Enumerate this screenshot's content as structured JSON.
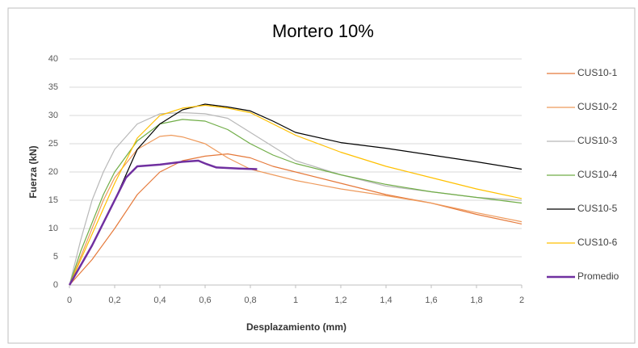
{
  "chart_data": {
    "type": "line",
    "title": "Mortero 10%",
    "xlabel": "Desplazamiento (mm)",
    "ylabel": "Fuerza (kN)",
    "xlim": [
      0,
      2
    ],
    "ylim": [
      0,
      40
    ],
    "xticks": [
      0,
      {
        "value": 0.2,
        "label": "0,2"
      },
      {
        "value": 0.4,
        "label": "0,4"
      },
      {
        "value": 0.6,
        "label": "0,6"
      },
      {
        "value": 0.8,
        "label": "0,8"
      },
      1,
      {
        "value": 1.2,
        "label": "1,2"
      },
      {
        "value": 1.4,
        "label": "1,4"
      },
      {
        "value": 1.6,
        "label": "1,6"
      },
      {
        "value": 1.8,
        "label": "1,8"
      },
      2
    ],
    "yticks": [
      0,
      5,
      10,
      15,
      20,
      25,
      30,
      35,
      40
    ],
    "grid": true,
    "legend": "right",
    "series": [
      {
        "name": "CUS10-1",
        "color": "#e5793a",
        "width": 1.2,
        "x": [
          0,
          0.1,
          0.2,
          0.3,
          0.4,
          0.5,
          0.6,
          0.7,
          0.8,
          0.9,
          1.0,
          1.2,
          1.4,
          1.6,
          1.8,
          2.0
        ],
        "values": [
          0,
          4.5,
          10,
          16,
          20,
          22,
          22.8,
          23.2,
          22.5,
          21,
          20,
          18,
          16,
          14.5,
          12.5,
          10.8
        ]
      },
      {
        "name": "CUS10-2",
        "color": "#ee9a5c",
        "width": 1.2,
        "x": [
          0,
          0.05,
          0.1,
          0.15,
          0.2,
          0.3,
          0.4,
          0.45,
          0.5,
          0.6,
          0.7,
          0.8,
          0.9,
          1.0,
          1.2,
          1.4,
          1.6,
          1.8,
          2.0
        ],
        "values": [
          0,
          5,
          10,
          15,
          19,
          24,
          26.3,
          26.5,
          26.2,
          25,
          22.5,
          20.5,
          19.5,
          18.5,
          17,
          15.8,
          14.5,
          12.8,
          11.2
        ]
      },
      {
        "name": "CUS10-3",
        "color": "#b8b8b8",
        "width": 1.2,
        "x": [
          0,
          0.05,
          0.1,
          0.15,
          0.2,
          0.3,
          0.4,
          0.5,
          0.6,
          0.7,
          0.8,
          0.9,
          1.0,
          1.2,
          1.4,
          1.6,
          1.8,
          2.0
        ],
        "values": [
          0,
          8,
          15,
          20,
          24,
          28.5,
          30.3,
          30.5,
          30.3,
          29.5,
          27,
          24.5,
          22,
          19.5,
          17.5,
          16.5,
          15.5,
          15
        ]
      },
      {
        "name": "CUS10-4",
        "color": "#70ad47",
        "width": 1.2,
        "x": [
          0,
          0.05,
          0.1,
          0.15,
          0.2,
          0.3,
          0.4,
          0.5,
          0.6,
          0.7,
          0.8,
          0.9,
          1.0,
          1.2,
          1.4,
          1.6,
          1.8,
          2.0
        ],
        "values": [
          0,
          6,
          11,
          16,
          20,
          25.5,
          28.5,
          29.3,
          29,
          27.5,
          25,
          23,
          21.5,
          19.5,
          17.8,
          16.5,
          15.5,
          14.5
        ]
      },
      {
        "name": "CUS10-5",
        "color": "#000000",
        "width": 1.2,
        "x": [
          0,
          0.1,
          0.2,
          0.3,
          0.4,
          0.5,
          0.6,
          0.7,
          0.8,
          0.9,
          1.0,
          1.2,
          1.4,
          1.6,
          1.8,
          2.0
        ],
        "values": [
          0,
          7,
          15,
          24,
          28.5,
          31,
          32,
          31.5,
          30.8,
          29,
          27,
          25.2,
          24.2,
          23,
          21.8,
          20.5
        ]
      },
      {
        "name": "CUS10-6",
        "color": "#ffc000",
        "width": 1.2,
        "x": [
          0,
          0.1,
          0.2,
          0.3,
          0.4,
          0.5,
          0.6,
          0.7,
          0.8,
          0.9,
          1.0,
          1.2,
          1.4,
          1.6,
          1.8,
          2.0
        ],
        "values": [
          0,
          9,
          18,
          26,
          30,
          31.3,
          31.8,
          31.3,
          30.5,
          28.5,
          26.5,
          23.5,
          21,
          19,
          17,
          15.3
        ]
      },
      {
        "name": "Promedio",
        "color": "#7030a0",
        "width": 2.5,
        "x": [
          0,
          0.1,
          0.2,
          0.25,
          0.3,
          0.4,
          0.5,
          0.57,
          0.6,
          0.65,
          0.75,
          0.83
        ],
        "values": [
          0,
          7,
          15,
          19,
          21,
          21.3,
          21.8,
          22,
          21.5,
          20.8,
          20.6,
          20.5
        ]
      }
    ]
  }
}
